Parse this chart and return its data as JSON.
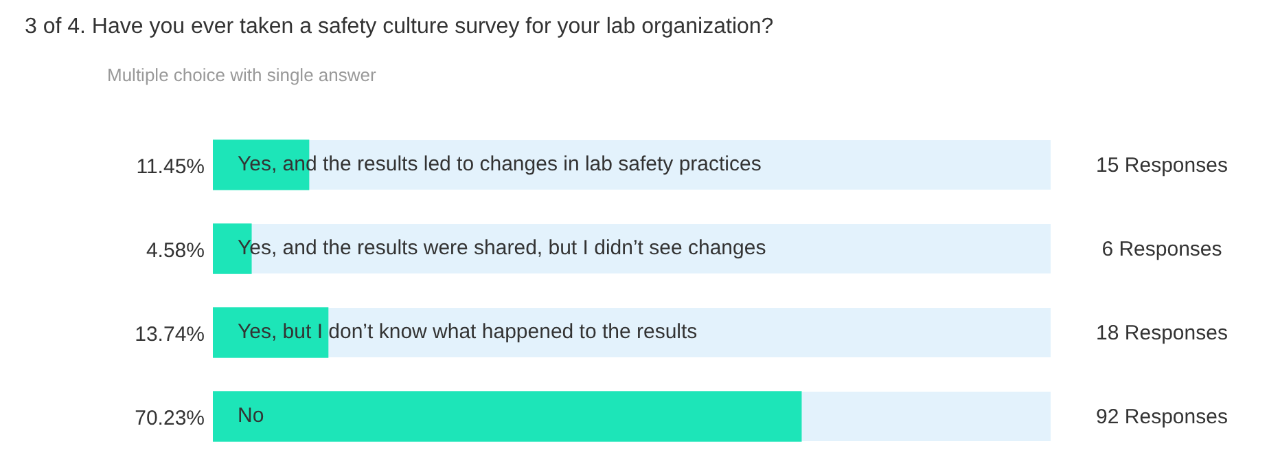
{
  "chart_data": {
    "type": "bar",
    "orientation": "horizontal",
    "title": "3 of 4. Have you ever taken a safety culture survey for your lab organization?",
    "subtitle": "Multiple choice with single answer",
    "categories": [
      "Yes, and the results led to changes in lab safety practices",
      "Yes, and the results were shared, but I didn’t see changes",
      "Yes, but I don’t know what happened to the results",
      "No"
    ],
    "values": [
      11.45,
      4.58,
      13.74,
      70.23
    ],
    "color": "#1de5b8",
    "value_labels": [
      "11.45%",
      "4.58%",
      "13.74%",
      "70.23%"
    ],
    "xlim": [
      0,
      100
    ],
    "tick_labels": "y",
    "legend": false,
    "bands": [
      {
        "axis": "x",
        "from": 0,
        "to": 100,
        "color": "#e3f2fc"
      }
    ],
    "annotations": [
      "15 Responses",
      "6 Responses",
      "18 Responses",
      "92 Responses"
    ]
  }
}
